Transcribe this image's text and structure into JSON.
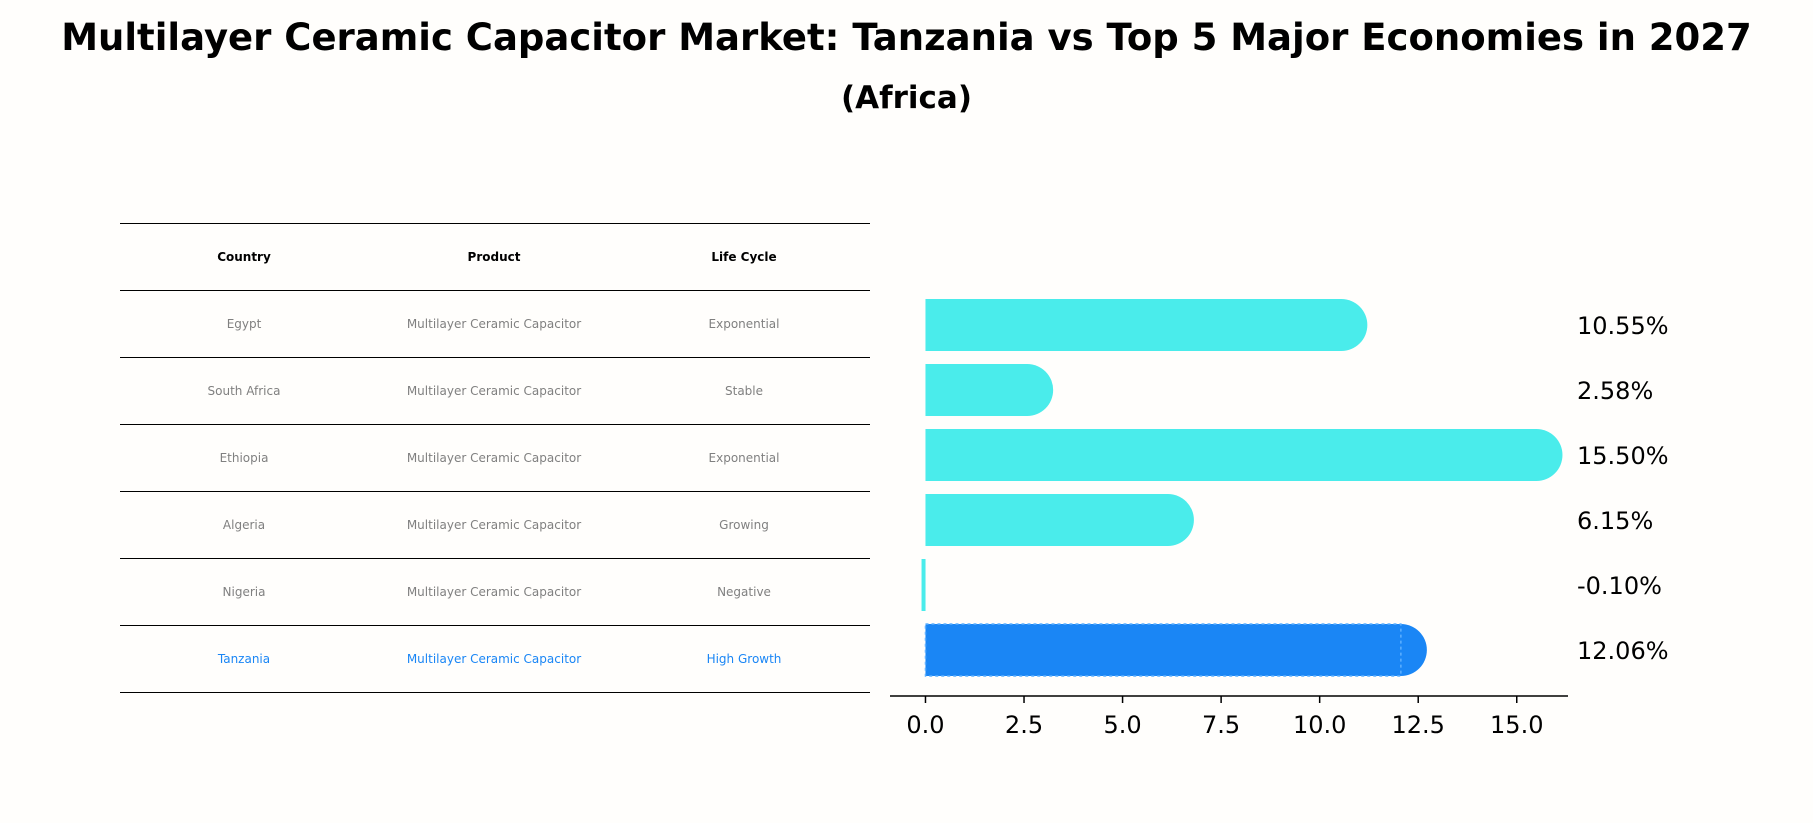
{
  "title": "Multilayer Ceramic Capacitor Market: Tanzania vs Top 5 Major Economies in 2027",
  "subtitle": "(Africa)",
  "table": {
    "headers": [
      "Country",
      "Product",
      "Life Cycle"
    ],
    "rows": [
      {
        "country": "Egypt",
        "product": "Multilayer Ceramic Capacitor",
        "life_cycle": "Exponential"
      },
      {
        "country": "South Africa",
        "product": "Multilayer Ceramic Capacitor",
        "life_cycle": "Stable"
      },
      {
        "country": "Ethiopia",
        "product": "Multilayer Ceramic Capacitor",
        "life_cycle": "Exponential"
      },
      {
        "country": "Algeria",
        "product": "Multilayer Ceramic Capacitor",
        "life_cycle": "Growing"
      },
      {
        "country": "Nigeria",
        "product": "Multilayer Ceramic Capacitor",
        "life_cycle": "Negative"
      },
      {
        "country": "Tanzania",
        "product": "Multilayer Ceramic Capacitor",
        "life_cycle": "High Growth"
      }
    ]
  },
  "colors": {
    "bar": "#4aeceb",
    "highlight": "#1a86f5",
    "muted_text": "#808080"
  },
  "chart_data": {
    "type": "bar",
    "orientation": "horizontal",
    "categories": [
      "Egypt",
      "South Africa",
      "Ethiopia",
      "Algeria",
      "Nigeria",
      "Tanzania"
    ],
    "values": [
      10.55,
      2.58,
      15.5,
      6.15,
      -0.1,
      12.06
    ],
    "value_labels": [
      "10.55%",
      "2.58%",
      "15.50%",
      "6.15%",
      "-0.10%",
      "12.06%"
    ],
    "highlight_category": "Tanzania",
    "xlim": [
      -0.9,
      16.3
    ],
    "xticks": [
      0.0,
      2.5,
      5.0,
      7.5,
      10.0,
      12.5,
      15.0
    ],
    "xtick_labels": [
      "0.0",
      "2.5",
      "5.0",
      "7.5",
      "10.0",
      "12.5",
      "15.0"
    ],
    "xlabel": "",
    "ylabel": "",
    "grid": false,
    "legend": "none"
  }
}
